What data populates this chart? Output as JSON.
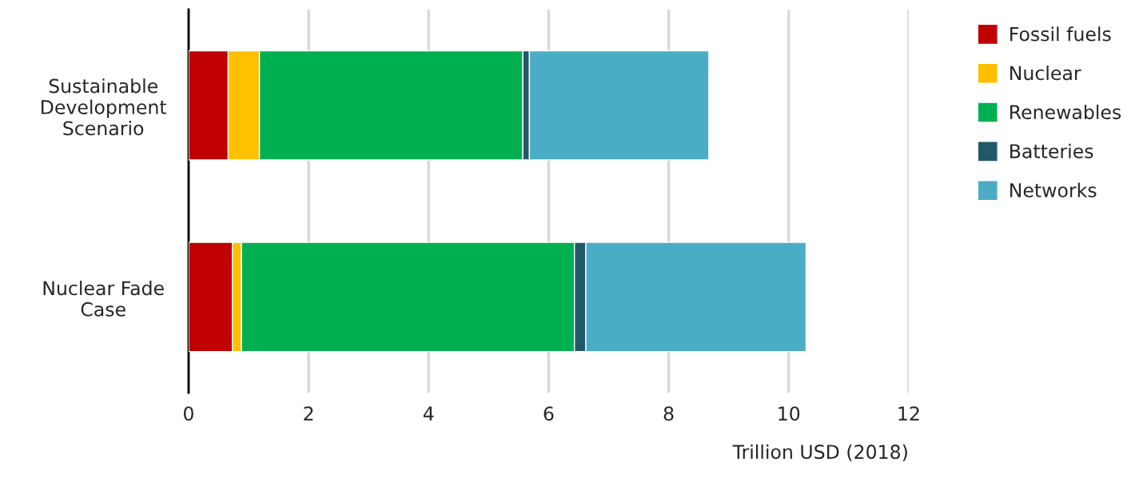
{
  "chart_data": {
    "type": "bar",
    "orientation": "horizontal",
    "stacked": true,
    "xlabel": "Trillion USD (2018)",
    "categories": [
      "Sustainable\nDevelopment\nScenario",
      "Nuclear Fade\nCase"
    ],
    "series": [
      {
        "name": "Fossil fuels",
        "color": "#c00000",
        "values": [
          0.66,
          0.73
        ]
      },
      {
        "name": "Nuclear",
        "color": "#ffc000",
        "values": [
          0.52,
          0.15
        ]
      },
      {
        "name": "Renewables",
        "color": "#00b050",
        "values": [
          4.39,
          5.55
        ]
      },
      {
        "name": "Batteries",
        "color": "#215968",
        "values": [
          0.11,
          0.19
        ]
      },
      {
        "name": "Networks",
        "color": "#4bacc6",
        "values": [
          2.99,
          3.67
        ]
      }
    ],
    "xlim": [
      0,
      12
    ],
    "xticks": [
      0,
      2,
      4,
      6,
      8,
      10,
      12
    ],
    "grid": "x",
    "legend": "right",
    "marker": "square"
  }
}
